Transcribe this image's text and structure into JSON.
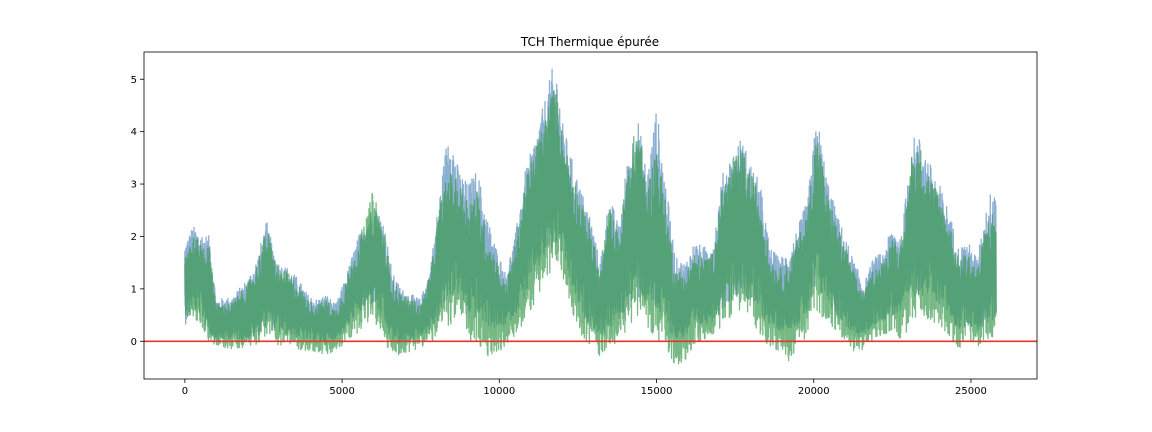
{
  "chart_data": {
    "type": "line",
    "title": "TCH Thermique épurée",
    "xlabel": "",
    "ylabel": "",
    "xlim": [
      -1300,
      27100
    ],
    "ylim": [
      -0.72,
      5.52
    ],
    "xticks": [
      0,
      5000,
      10000,
      15000,
      20000,
      25000
    ],
    "yticks": [
      0,
      1,
      2,
      3,
      4,
      5
    ],
    "grid": false,
    "legend": "none",
    "n_points": 25800,
    "series": [
      {
        "color": "#5b8fbf",
        "opacity": 0.7,
        "envelope": {
          "x": [
            0,
            250,
            500,
            800,
            1000,
            1500,
            2000,
            2300,
            2600,
            2800,
            3000,
            3300,
            3600,
            3900,
            4200,
            4500,
            4800,
            5100,
            5400,
            5700,
            6000,
            6300,
            6600,
            6900,
            7200,
            7500,
            7800,
            8100,
            8400,
            8700,
            9000,
            9300,
            9600,
            9900,
            10200,
            10500,
            10800,
            11100,
            11400,
            11700,
            11850,
            12000,
            12300,
            12600,
            12900,
            13200,
            13500,
            13800,
            14100,
            14400,
            14700,
            15000,
            15300,
            15600,
            15900,
            16200,
            16500,
            16800,
            17100,
            17400,
            17700,
            18000,
            18300,
            18600,
            18900,
            19200,
            19500,
            19800,
            20100,
            20400,
            20700,
            21000,
            21300,
            21600,
            21900,
            22200,
            22500,
            22800,
            23100,
            23400,
            23700,
            24000,
            24300,
            24600,
            24900,
            25200,
            25500,
            25800
          ],
          "high": [
            1.9,
            2.2,
            2.1,
            2.0,
            0.8,
            0.85,
            1.2,
            1.6,
            2.3,
            1.8,
            1.5,
            1.4,
            1.2,
            0.9,
            0.8,
            0.9,
            0.7,
            1.2,
            1.8,
            2.3,
            2.6,
            2.4,
            1.3,
            1.0,
            0.9,
            0.8,
            1.4,
            2.8,
            4.2,
            3.3,
            3.0,
            3.3,
            2.4,
            1.8,
            1.3,
            2.0,
            3.2,
            3.8,
            4.5,
            5.25,
            5.1,
            4.2,
            3.5,
            2.9,
            2.4,
            1.5,
            2.8,
            2.2,
            3.6,
            4.3,
            3.2,
            4.5,
            3.0,
            1.6,
            1.5,
            1.9,
            1.8,
            1.9,
            3.2,
            3.6,
            3.9,
            3.4,
            3.0,
            1.8,
            1.6,
            1.7,
            2.2,
            2.7,
            4.35,
            3.2,
            2.5,
            2.0,
            1.5,
            1.1,
            1.6,
            1.7,
            2.2,
            2.0,
            3.9,
            3.9,
            3.4,
            3.0,
            2.5,
            1.8,
            1.9,
            1.6,
            2.6,
            3.2
          ],
          "low": [
            0.3,
            0.6,
            0.5,
            0.1,
            0.0,
            0.05,
            0.0,
            0.1,
            0.3,
            0.2,
            0.15,
            0.1,
            0.05,
            0.0,
            0.0,
            -0.05,
            0.05,
            0.2,
            0.4,
            0.6,
            0.7,
            0.3,
            0.0,
            -0.05,
            0.0,
            0.1,
            0.2,
            0.4,
            0.8,
            0.9,
            0.5,
            0.4,
            0.3,
            0.2,
            0.3,
            0.5,
            0.8,
            1.2,
            1.5,
            1.7,
            1.8,
            1.6,
            1.0,
            0.5,
            0.3,
            0.1,
            0.2,
            0.4,
            0.6,
            0.8,
            0.7,
            0.5,
            0.3,
            0.0,
            0.05,
            0.2,
            0.3,
            0.4,
            0.6,
            0.8,
            0.9,
            0.7,
            0.5,
            0.3,
            0.2,
            0.25,
            0.3,
            0.5,
            0.9,
            0.8,
            0.5,
            0.3,
            0.05,
            0.1,
            0.3,
            0.4,
            0.5,
            0.5,
            0.8,
            0.9,
            0.8,
            0.7,
            0.5,
            0.2,
            0.3,
            0.2,
            0.3,
            0.4
          ]
        }
      },
      {
        "color": "#3d9b50",
        "opacity": 0.7,
        "envelope": {
          "x": [
            0,
            250,
            500,
            800,
            1000,
            1500,
            2000,
            2300,
            2600,
            2800,
            3000,
            3300,
            3600,
            3900,
            4200,
            4500,
            4800,
            5100,
            5400,
            5700,
            6000,
            6300,
            6600,
            6900,
            7200,
            7500,
            7800,
            8100,
            8400,
            8700,
            9000,
            9300,
            9600,
            9900,
            10200,
            10500,
            10800,
            11100,
            11400,
            11700,
            11850,
            12000,
            12300,
            12600,
            12900,
            13200,
            13500,
            13800,
            14100,
            14400,
            14700,
            15000,
            15300,
            15600,
            15900,
            16200,
            16500,
            16800,
            17100,
            17400,
            17700,
            18000,
            18300,
            18600,
            18900,
            19200,
            19500,
            19800,
            20100,
            20400,
            20700,
            21000,
            21300,
            21600,
            21900,
            22200,
            22500,
            22800,
            23100,
            23400,
            23700,
            24000,
            24300,
            24600,
            24900,
            25200,
            25500,
            25800
          ],
          "high": [
            1.7,
            2.0,
            1.9,
            1.8,
            0.7,
            0.75,
            1.1,
            1.5,
            2.2,
            1.7,
            1.4,
            1.3,
            1.1,
            0.8,
            0.7,
            0.8,
            0.6,
            1.1,
            1.7,
            2.2,
            2.95,
            2.2,
            1.2,
            0.9,
            0.8,
            0.7,
            1.3,
            2.6,
            3.3,
            3.0,
            2.8,
            2.9,
            2.1,
            1.6,
            1.1,
            1.8,
            3.0,
            3.6,
            4.2,
            4.85,
            4.7,
            4.0,
            3.3,
            2.7,
            2.2,
            1.3,
            2.6,
            2.0,
            3.4,
            4.3,
            2.9,
            3.8,
            2.6,
            1.4,
            1.3,
            1.7,
            1.6,
            1.7,
            3.0,
            3.4,
            3.7,
            3.2,
            2.8,
            1.6,
            1.4,
            1.5,
            2.0,
            2.5,
            4.1,
            2.9,
            2.3,
            1.8,
            1.3,
            0.9,
            1.4,
            1.5,
            2.0,
            1.8,
            3.6,
            3.7,
            3.2,
            2.8,
            2.3,
            1.6,
            1.7,
            1.4,
            2.3,
            2.6
          ],
          "low": [
            0.5,
            0.4,
            0.3,
            -0.05,
            -0.1,
            -0.15,
            -0.1,
            -0.05,
            0.1,
            0.05,
            -0.1,
            -0.1,
            -0.15,
            -0.2,
            -0.2,
            -0.3,
            -0.2,
            -0.05,
            0.1,
            0.3,
            0.4,
            0.0,
            -0.3,
            -0.25,
            -0.2,
            -0.1,
            -0.05,
            0.1,
            0.3,
            0.4,
            0.0,
            -0.1,
            -0.4,
            -0.2,
            -0.15,
            0.1,
            0.3,
            0.7,
            1.0,
            1.3,
            1.5,
            1.2,
            0.6,
            0.1,
            -0.1,
            -0.3,
            -0.1,
            0.0,
            0.2,
            0.5,
            0.3,
            0.0,
            -0.3,
            -0.45,
            -0.4,
            -0.1,
            0.0,
            0.1,
            0.3,
            0.5,
            0.6,
            0.4,
            0.1,
            -0.1,
            -0.2,
            -0.4,
            -0.1,
            0.1,
            0.5,
            0.4,
            0.2,
            -0.1,
            -0.2,
            -0.15,
            0.0,
            0.1,
            0.2,
            0.0,
            0.3,
            0.5,
            0.4,
            0.3,
            0.1,
            -0.15,
            0.0,
            -0.1,
            0.0,
            0.1
          ]
        }
      }
    ],
    "reference_line": {
      "y": 0,
      "color": "#e8332b"
    }
  },
  "colors": {
    "axes": "#000000",
    "background": "#ffffff"
  }
}
